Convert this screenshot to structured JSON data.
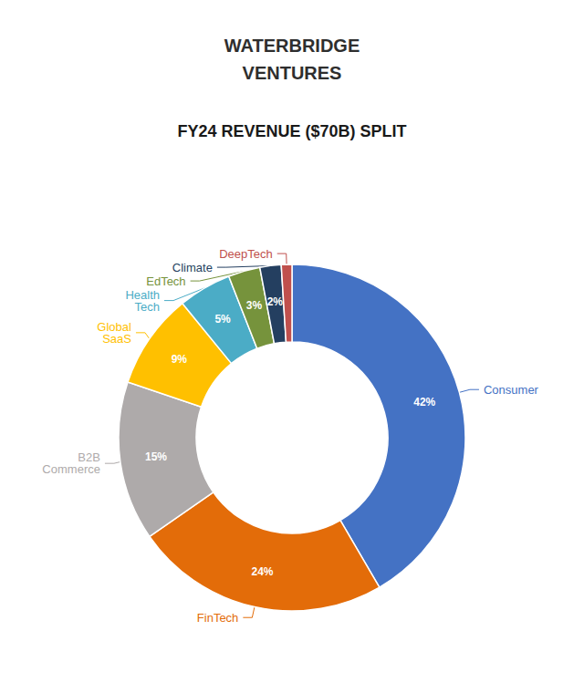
{
  "chart_data": {
    "type": "donut",
    "title": "FY24 REVENUE ($70B) SPLIT",
    "annotations": [
      "WATERBRIDGE",
      "VENTURES"
    ],
    "categories": [
      "Consumer",
      "FinTech",
      "B2B\nCommerce",
      "Global\nSaaS",
      "Health\nTech",
      "EdTech",
      "Climate",
      "DeepTech"
    ],
    "values": [
      42,
      24,
      15,
      9,
      5,
      3,
      2,
      1
    ],
    "value_labels": [
      "42%",
      "24%",
      "15%",
      "9%",
      "5%",
      "3%",
      "2%",
      null
    ],
    "colors": [
      "#4472C4",
      "#E36C09",
      "#AEAAAA",
      "#FFC000",
      "#4BACC6",
      "#76933C",
      "#243F60",
      "#C0504D"
    ],
    "data_labels": true
  }
}
